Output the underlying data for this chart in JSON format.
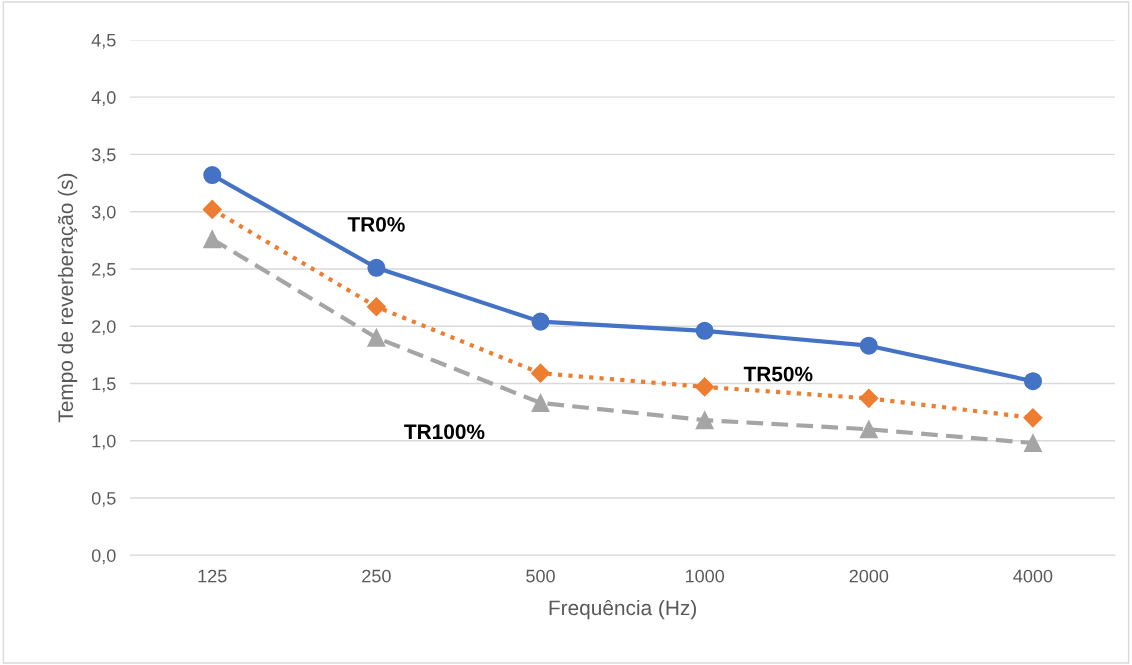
{
  "chart_data": {
    "type": "line",
    "xlabel": "Frequência (Hz)",
    "ylabel": "Tempo de reverberação (s)",
    "categories": [
      "125",
      "250",
      "500",
      "1000",
      "2000",
      "4000"
    ],
    "series": [
      {
        "name": "TR0%",
        "color": "#4472c4",
        "marker": "circle",
        "line_style": "solid",
        "values": [
          3.32,
          2.51,
          2.04,
          1.96,
          1.83,
          1.52
        ]
      },
      {
        "name": "TR50%",
        "color": "#ed7d31",
        "marker": "diamond",
        "line_style": "dotted",
        "values": [
          3.02,
          2.17,
          1.59,
          1.47,
          1.37,
          1.2
        ]
      },
      {
        "name": "TR100%",
        "color": "#a5a5a5",
        "marker": "triangle",
        "line_style": "dashed",
        "values": [
          2.76,
          1.9,
          1.33,
          1.18,
          1.1,
          0.98
        ]
      }
    ],
    "ylim": [
      0,
      4.5
    ],
    "yticks": [
      {
        "value": 0,
        "label": "0,0"
      },
      {
        "value": 0.5,
        "label": "0,5"
      },
      {
        "value": 1,
        "label": "1,0"
      },
      {
        "value": 1.5,
        "label": "1,5"
      },
      {
        "value": 2,
        "label": "2,0"
      },
      {
        "value": 2.5,
        "label": "2,5"
      },
      {
        "value": 3,
        "label": "3,0"
      },
      {
        "value": 3.5,
        "label": "3,5"
      },
      {
        "value": 4,
        "label": "4,0"
      },
      {
        "value": 4.5,
        "label": "4,5"
      }
    ],
    "grid": "y",
    "legend": false
  }
}
